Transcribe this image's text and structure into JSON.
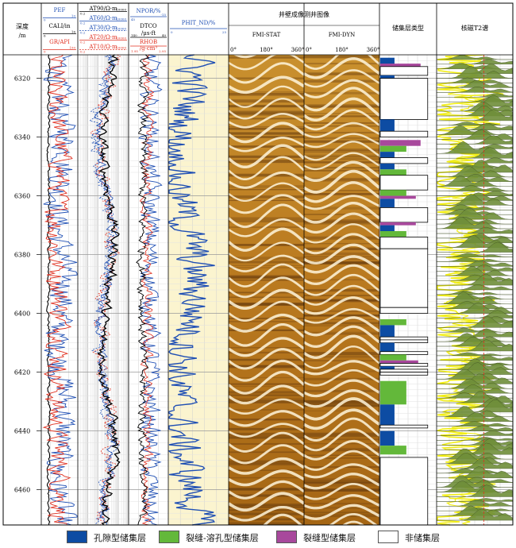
{
  "chart_data": {
    "type": "well-log",
    "depth_axis": {
      "label": "深度",
      "unit": "/m",
      "range": [
        6312,
        6472
      ],
      "ticks": [
        6320,
        6340,
        6360,
        6380,
        6400,
        6420,
        6440,
        6460
      ]
    },
    "tracks": [
      {
        "id": "track1",
        "curves": [
          {
            "name": "PEF",
            "color": "#1f4fb4",
            "scale_min": "0",
            "scale_max": "10",
            "dashed": false
          },
          {
            "name": "CALI/in",
            "color": "#000000",
            "scale_min": "6",
            "scale_max": "16",
            "dashed": false
          },
          {
            "name": "GR/API",
            "color": "#e03020",
            "scale_min": "0",
            "scale_max": "150",
            "dashed": false
          }
        ]
      },
      {
        "id": "track2",
        "curves": [
          {
            "name": "AT90/Ω·m",
            "color": "#000000",
            "scale_min": "0.2",
            "scale_max": "10000",
            "dashed": false
          },
          {
            "name": "AT60/Ω·m",
            "color": "#1f4fb4",
            "scale_min": "0.2",
            "scale_max": "10000",
            "dashed": false
          },
          {
            "name": "AT30/Ω·m",
            "color": "#1f4fb4",
            "scale_min": "0.2",
            "scale_max": "10000",
            "dashed": true
          },
          {
            "name": "AT20/Ω·m",
            "color": "#e03020",
            "scale_min": "0.2",
            "scale_max": "10000",
            "dashed": false
          },
          {
            "name": "AT10/Ω·m",
            "color": "#e03020",
            "scale_min": "0.2",
            "scale_max": "10000",
            "dashed": true
          }
        ]
      },
      {
        "id": "track3",
        "curves": [
          {
            "name": "NPOR/%",
            "color": "#1f4fb4",
            "scale_min": "45",
            "scale_max": "-15",
            "dashed": false
          },
          {
            "name": "DTCO",
            "unit": "/μs·ft",
            "color": "#000000",
            "scale_min": "140",
            "scale_max": "40",
            "dashed": false
          },
          {
            "name": "RHOB",
            "unit": "/g·cm³",
            "color": "#e03020",
            "scale_min": "1.95",
            "scale_max": "2.95",
            "dashed": false
          }
        ]
      },
      {
        "id": "track4",
        "curves": [
          {
            "name": "PHIT_ND/%",
            "color": "#1f4fb4",
            "scale_min": "0",
            "scale_max": "25",
            "dashed": false
          }
        ]
      }
    ],
    "image_panel": {
      "title": "井壁成像测井图像",
      "images": [
        {
          "name": "FMI-STAT",
          "ticks": [
            "0°",
            "180°",
            "360°"
          ]
        },
        {
          "name": "FMI-DYN",
          "ticks": [
            "0°",
            "180°",
            "360°"
          ]
        }
      ]
    },
    "reservoir_track": {
      "title": "储集层类型",
      "intervals": [
        {
          "top": 6313,
          "bottom": 6317,
          "type": "pore",
          "extent": 0.3
        },
        {
          "top": 6315,
          "bottom": 6316,
          "type": "fracture",
          "extent": 0.85
        },
        {
          "top": 6316,
          "bottom": 6319,
          "type": "non",
          "extent": 1.0
        },
        {
          "top": 6319,
          "bottom": 6320,
          "type": "pore",
          "extent": 0.3
        },
        {
          "top": 6320,
          "bottom": 6334,
          "type": "non",
          "extent": 1.0
        },
        {
          "top": 6334,
          "bottom": 6338,
          "type": "pore",
          "extent": 0.3
        },
        {
          "top": 6338,
          "bottom": 6340,
          "type": "non",
          "extent": 1.0
        },
        {
          "top": 6341,
          "bottom": 6343,
          "type": "fracture",
          "extent": 0.85
        },
        {
          "top": 6343,
          "bottom": 6345,
          "type": "vug",
          "extent": 0.55
        },
        {
          "top": 6345,
          "bottom": 6347,
          "type": "pore",
          "extent": 0.3
        },
        {
          "top": 6347,
          "bottom": 6349,
          "type": "non",
          "extent": 1.0
        },
        {
          "top": 6349,
          "bottom": 6351,
          "type": "pore",
          "extent": 0.3
        },
        {
          "top": 6351,
          "bottom": 6353,
          "type": "vug",
          "extent": 0.55
        },
        {
          "top": 6353,
          "bottom": 6358,
          "type": "non",
          "extent": 1.0
        },
        {
          "top": 6358,
          "bottom": 6360,
          "type": "vug",
          "extent": 0.55
        },
        {
          "top": 6360,
          "bottom": 6361,
          "type": "fracture",
          "extent": 0.75
        },
        {
          "top": 6361,
          "bottom": 6364,
          "type": "pore",
          "extent": 0.3
        },
        {
          "top": 6364,
          "bottom": 6369,
          "type": "non",
          "extent": 1.0
        },
        {
          "top": 6369,
          "bottom": 6370,
          "type": "fracture",
          "extent": 0.75
        },
        {
          "top": 6370,
          "bottom": 6372,
          "type": "pore",
          "extent": 0.3
        },
        {
          "top": 6372,
          "bottom": 6374,
          "type": "vug",
          "extent": 0.55
        },
        {
          "top": 6374,
          "bottom": 6378,
          "type": "non",
          "extent": 1.0
        },
        {
          "top": 6378,
          "bottom": 6398,
          "type": "non",
          "extent": 1.0
        },
        {
          "top": 6398,
          "bottom": 6400,
          "type": "non",
          "extent": 1.0
        },
        {
          "top": 6402,
          "bottom": 6404,
          "type": "vug",
          "extent": 0.55
        },
        {
          "top": 6404,
          "bottom": 6408,
          "type": "pore",
          "extent": 0.3
        },
        {
          "top": 6408,
          "bottom": 6409,
          "type": "non",
          "extent": 1.0
        },
        {
          "top": 6409,
          "bottom": 6410,
          "type": "non",
          "extent": 1.0
        },
        {
          "top": 6410,
          "bottom": 6413,
          "type": "pore",
          "extent": 0.3
        },
        {
          "top": 6413,
          "bottom": 6414,
          "type": "non",
          "extent": 1.0
        },
        {
          "top": 6414,
          "bottom": 6416,
          "type": "vug",
          "extent": 0.55
        },
        {
          "top": 6416,
          "bottom": 6417,
          "type": "fracture",
          "extent": 0.8
        },
        {
          "top": 6417,
          "bottom": 6418,
          "type": "non",
          "extent": 1.0
        },
        {
          "top": 6418,
          "bottom": 6419,
          "type": "pore",
          "extent": 0.3
        },
        {
          "top": 6419,
          "bottom": 6420,
          "type": "non",
          "extent": 1.0
        },
        {
          "top": 6420,
          "bottom": 6421,
          "type": "non",
          "extent": 1.0
        },
        {
          "top": 6423,
          "bottom": 6431,
          "type": "vug",
          "extent": 0.55
        },
        {
          "top": 6431,
          "bottom": 6438,
          "type": "pore",
          "extent": 0.3
        },
        {
          "top": 6438,
          "bottom": 6439,
          "type": "non",
          "extent": 1.0
        },
        {
          "top": 6440,
          "bottom": 6445,
          "type": "pore",
          "extent": 0.3
        },
        {
          "top": 6445,
          "bottom": 6448,
          "type": "vug",
          "extent": 0.55
        },
        {
          "top": 6449,
          "bottom": 6472,
          "type": "non",
          "extent": 1.0
        }
      ]
    },
    "t2_track": {
      "title": "核磁T2谱"
    },
    "legend": [
      {
        "type": "pore",
        "label": "孔隙型储集层",
        "color": "#0d4ca3"
      },
      {
        "type": "vug",
        "label": "裂缝-溶孔型储集层",
        "color": "#63b83a"
      },
      {
        "type": "fracture",
        "label": "裂缝型储集层",
        "color": "#a8489c"
      },
      {
        "type": "non",
        "label": "非储集层",
        "color": "#ffffff"
      }
    ]
  }
}
